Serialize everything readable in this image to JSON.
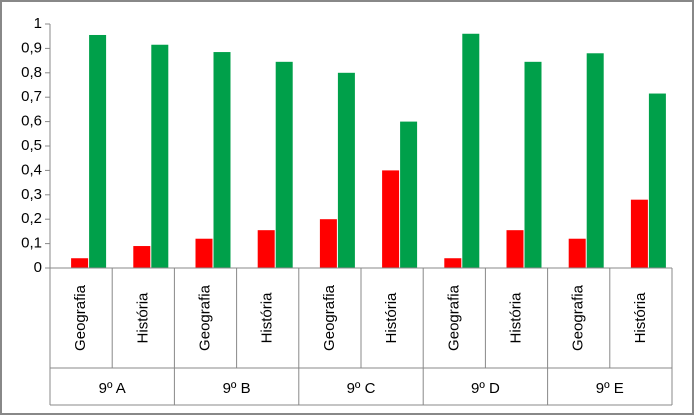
{
  "chart_data": {
    "type": "bar",
    "categories": [
      "Geografia",
      "História",
      "Geografia",
      "História",
      "Geografia",
      "História",
      "Geografia",
      "História",
      "Geografia",
      "História"
    ],
    "groups": [
      "9º A",
      "9º B",
      "9º C",
      "9º D",
      "9º E"
    ],
    "series": [
      {
        "color": "#ff0000",
        "values": [
          0.04,
          0.09,
          0.12,
          0.155,
          0.2,
          0.4,
          0.04,
          0.155,
          0.12,
          0.28
        ]
      },
      {
        "color": "#00a04a",
        "values": [
          0.955,
          0.915,
          0.885,
          0.845,
          0.8,
          0.6,
          0.96,
          0.845,
          0.88,
          0.715
        ]
      }
    ],
    "ylim": [
      0,
      1
    ],
    "yticks": [
      0,
      {
        "value": 0.1,
        "label": "0,1"
      },
      {
        "value": 0.2,
        "label": "0,2"
      },
      {
        "value": 0.3,
        "label": "0,3"
      },
      {
        "value": 0.4,
        "label": "0,4"
      },
      {
        "value": 0.5,
        "label": "0,5"
      },
      {
        "value": 0.6,
        "label": "0,6"
      },
      {
        "value": 0.7,
        "label": "0,7"
      },
      {
        "value": 0.8,
        "label": "0,8"
      },
      {
        "value": 0.9,
        "label": "0,9"
      },
      1
    ],
    "grid": false
  }
}
